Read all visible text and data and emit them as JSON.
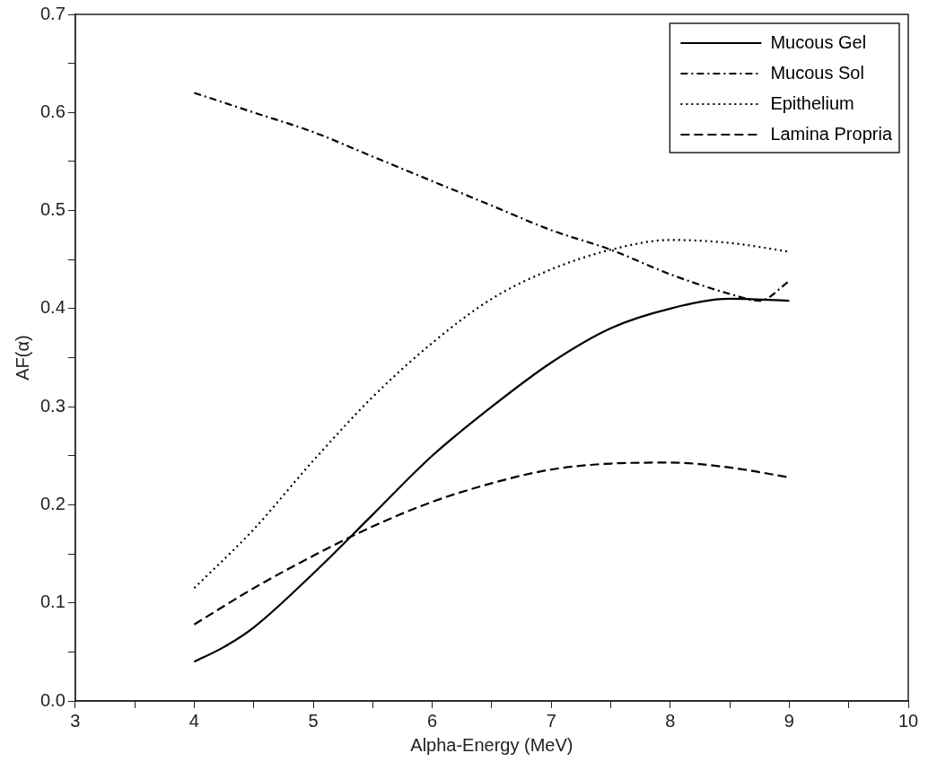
{
  "chart_data": {
    "type": "line",
    "xlabel": "Alpha-Energy (MeV)",
    "ylabel": "AF(α)",
    "xlim": [
      3,
      10
    ],
    "xticks": [
      3,
      {
        "value": 3.5,
        "label": null
      },
      4,
      {
        "value": 4.5,
        "label": null
      },
      5,
      {
        "value": 5.5,
        "label": null
      },
      6,
      {
        "value": 6.5,
        "label": null
      },
      7,
      {
        "value": 7.5,
        "label": null
      },
      8,
      {
        "value": 8.5,
        "label": null
      },
      9,
      {
        "value": 9.5,
        "label": null
      },
      10
    ],
    "ylim": [
      0,
      0.7
    ],
    "yticks": [
      {
        "value": 0,
        "label": "0.0"
      },
      {
        "value": 0.05,
        "label": null
      },
      {
        "value": 0.1,
        "label": "0.1"
      },
      {
        "value": 0.15,
        "label": null
      },
      {
        "value": 0.2,
        "label": "0.2"
      },
      {
        "value": 0.25,
        "label": null
      },
      {
        "value": 0.3,
        "label": "0.3"
      },
      {
        "value": 0.35,
        "label": null
      },
      {
        "value": 0.4,
        "label": "0.4"
      },
      {
        "value": 0.45,
        "label": null
      },
      {
        "value": 0.5,
        "label": "0.5"
      },
      {
        "value": 0.55,
        "label": null
      },
      {
        "value": 0.6,
        "label": "0.6"
      },
      {
        "value": 0.65,
        "label": null
      },
      {
        "value": 0.7,
        "label": "0.7"
      }
    ],
    "grid": false,
    "legend": "top right",
    "marker": "none",
    "series": [
      {
        "name": "Mucous Gel",
        "color": "#000000",
        "line_style": "solid",
        "x": [
          4,
          4.25,
          4.5,
          5,
          5.5,
          6,
          6.5,
          7,
          7.5,
          8,
          8.5,
          9
        ],
        "values": [
          0.04,
          0.055,
          0.075,
          0.13,
          0.19,
          0.25,
          0.3,
          0.345,
          0.38,
          0.4,
          0.41,
          0.408
        ]
      },
      {
        "name": "Mucous Sol",
        "color": "#000000",
        "line_style": "dashdot",
        "x": [
          4,
          4.5,
          5,
          5.5,
          6,
          6.5,
          7,
          7.5,
          8,
          8.5,
          8.75,
          9
        ],
        "values": [
          0.62,
          0.6,
          0.58,
          0.555,
          0.53,
          0.505,
          0.48,
          0.46,
          0.435,
          0.415,
          0.408,
          0.428
        ]
      },
      {
        "name": "Epithelium",
        "color": "#000000",
        "line_style": "dotted",
        "x": [
          4,
          4.5,
          5,
          5.5,
          6,
          6.5,
          7,
          7.5,
          8,
          8.5,
          9
        ],
        "values": [
          0.115,
          0.175,
          0.245,
          0.31,
          0.365,
          0.41,
          0.44,
          0.46,
          0.47,
          0.467,
          0.458
        ]
      },
      {
        "name": "Lamina Propria",
        "color": "#000000",
        "line_style": "dashed",
        "x": [
          4,
          4.5,
          5,
          5.5,
          6,
          6.5,
          7,
          7.5,
          8,
          8.5,
          9
        ],
        "values": [
          0.078,
          0.115,
          0.148,
          0.178,
          0.203,
          0.222,
          0.236,
          0.242,
          0.243,
          0.238,
          0.228
        ]
      }
    ]
  }
}
